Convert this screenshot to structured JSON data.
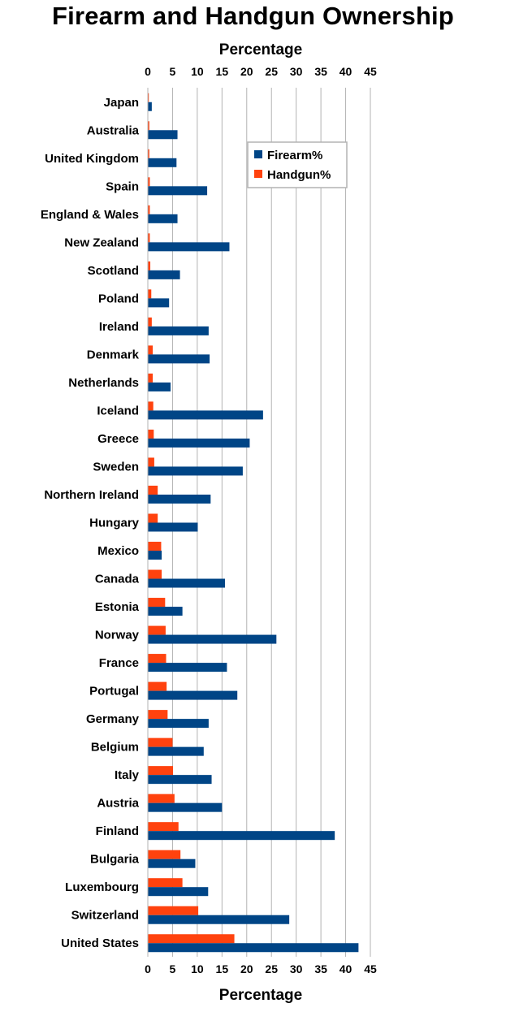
{
  "chart_data": {
    "type": "bar",
    "orientation": "horizontal",
    "title": "Firearm and Handgun Ownership",
    "xlabel": "Percentage",
    "ylabel": "",
    "xlim": [
      0,
      45
    ],
    "xticks": [
      0,
      5,
      10,
      15,
      20,
      25,
      30,
      35,
      40,
      45
    ],
    "grid": "vertical",
    "legend_position": "top-right",
    "categories": [
      "Japan",
      "Australia",
      "United Kingdom",
      "Spain",
      "England & Wales",
      "New Zealand",
      "Scotland",
      "Poland",
      "Ireland",
      "Denmark",
      "Netherlands",
      "Iceland",
      "Greece",
      "Sweden",
      "Northern Ireland",
      "Hungary",
      "Mexico",
      "Canada",
      "Estonia",
      "Norway",
      "France",
      "Portugal",
      "Germany",
      "Belgium",
      "Italy",
      "Austria",
      "Finland",
      "Bulgaria",
      "Luxembourg",
      "Switzerland",
      "United States"
    ],
    "series": [
      {
        "name": "Handgun%",
        "color": "#ff420e",
        "values": [
          0.2,
          0.3,
          0.3,
          0.4,
          0.4,
          0.4,
          0.5,
          0.7,
          0.8,
          1.0,
          1.0,
          1.1,
          1.2,
          1.3,
          2.0,
          2.0,
          2.7,
          2.8,
          3.5,
          3.6,
          3.7,
          3.8,
          4.0,
          5.0,
          5.1,
          5.4,
          6.2,
          6.6,
          7.0,
          10.2,
          17.5
        ]
      },
      {
        "name": "Firearm%",
        "color": "#004586",
        "values": [
          0.8,
          6.0,
          5.8,
          12.0,
          6.0,
          16.5,
          6.5,
          4.3,
          12.3,
          12.5,
          4.6,
          23.3,
          20.6,
          19.2,
          12.7,
          10.1,
          2.8,
          15.6,
          7.0,
          26.0,
          16.0,
          18.1,
          12.3,
          11.3,
          12.9,
          15.0,
          37.8,
          9.6,
          12.2,
          28.6,
          42.6
        ]
      }
    ],
    "legend": [
      "Firearm%",
      "Handgun%"
    ]
  }
}
